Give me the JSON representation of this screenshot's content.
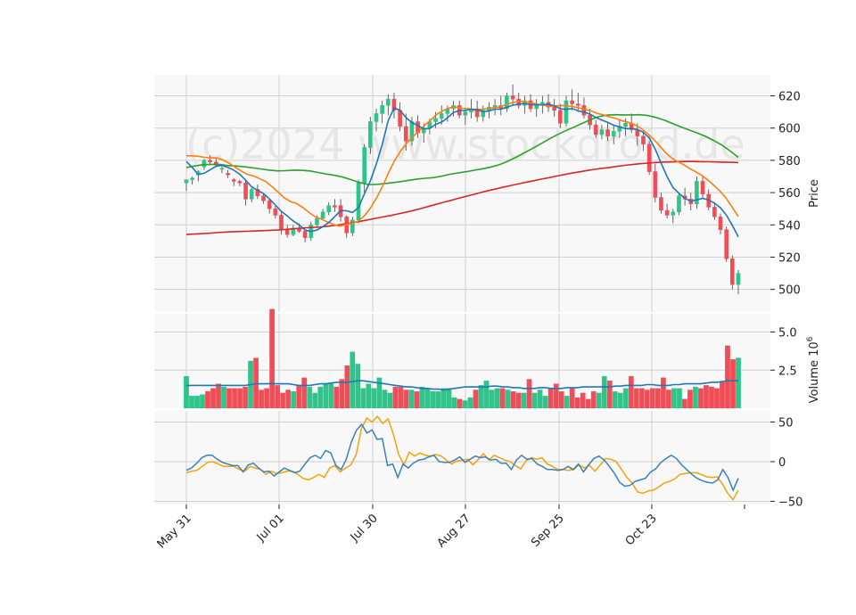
{
  "watermark": "(c)2024 www.stockdroid.de",
  "chart_data": {
    "type": "candlestick-with-volume-and-oscillator",
    "x_tick_labels": [
      "May 31",
      "Jul 01",
      "Jul 30",
      "Aug 27",
      "Sep 25",
      "Oct 23"
    ],
    "colors": {
      "up": "#2dc58a",
      "down": "#f14d57",
      "ma_blue": "#1f77b4",
      "ma_orange": "#ff7f0e",
      "ma_green": "#2ca02c",
      "ma_red": "#d62728",
      "osc_blue": "#3b82b8",
      "osc_orange": "#f5a20b",
      "panel_bg": "#f8f8f8",
      "grid": "#d0d0d0"
    },
    "price_panel": {
      "ylabel": "Price",
      "ylim": [
        486,
        633
      ],
      "yticks": [
        500,
        520,
        540,
        560,
        580,
        600,
        620
      ],
      "ohlc": [
        [
          566,
          568,
          561,
          568
        ],
        [
          568,
          570,
          565,
          569
        ],
        [
          571,
          574,
          567,
          573
        ],
        [
          576,
          581,
          574,
          580
        ],
        [
          580,
          583,
          577,
          579
        ],
        [
          579,
          581,
          576,
          577
        ],
        [
          575,
          577,
          572,
          575
        ],
        [
          572,
          574,
          569,
          571
        ],
        [
          568,
          569,
          564,
          567
        ],
        [
          567,
          568,
          564,
          566
        ],
        [
          566,
          568,
          552,
          556
        ],
        [
          556,
          563,
          554,
          562
        ],
        [
          562,
          565,
          556,
          558
        ],
        [
          558,
          559,
          553,
          555
        ],
        [
          555,
          556,
          547,
          550
        ],
        [
          550,
          552,
          544,
          546
        ],
        [
          546,
          548,
          534,
          537
        ],
        [
          537,
          540,
          532,
          534
        ],
        [
          534,
          540,
          533,
          538
        ],
        [
          538,
          541,
          535,
          536
        ],
        [
          536,
          537,
          529,
          532
        ],
        [
          532,
          542,
          530,
          540
        ],
        [
          540,
          546,
          538,
          544
        ],
        [
          544,
          550,
          543,
          548
        ],
        [
          548,
          554,
          546,
          552
        ],
        [
          552,
          556,
          548,
          551
        ],
        [
          552,
          556,
          542,
          545
        ],
        [
          545,
          546,
          532,
          535
        ],
        [
          535,
          545,
          533,
          543
        ],
        [
          543,
          568,
          541,
          566
        ],
        [
          566,
          590,
          560,
          588
        ],
        [
          588,
          607,
          584,
          604
        ],
        [
          604,
          612,
          598,
          609
        ],
        [
          609,
          617,
          603,
          614
        ],
        [
          614,
          621,
          608,
          618
        ],
        [
          618,
          622,
          606,
          611
        ],
        [
          611,
          616,
          598,
          601
        ],
        [
          601,
          609,
          586,
          592
        ],
        [
          592,
          607,
          589,
          604
        ],
        [
          604,
          608,
          594,
          597
        ],
        [
          597,
          603,
          591,
          600
        ],
        [
          600,
          606,
          596,
          604
        ],
        [
          604,
          610,
          600,
          606
        ],
        [
          606,
          614,
          602,
          609
        ],
        [
          609,
          614,
          604,
          612
        ],
        [
          612,
          617,
          607,
          614
        ],
        [
          614,
          617,
          606,
          608
        ],
        [
          608,
          612,
          602,
          610
        ],
        [
          610,
          618,
          606,
          612
        ],
        [
          612,
          617,
          604,
          607
        ],
        [
          607,
          614,
          604,
          611
        ],
        [
          611,
          616,
          606,
          613
        ],
        [
          613,
          618,
          608,
          614
        ],
        [
          614,
          620,
          608,
          612
        ],
        [
          612,
          622,
          610,
          620
        ],
        [
          620,
          627,
          614,
          618
        ],
        [
          618,
          622,
          612,
          614
        ],
        [
          614,
          620,
          609,
          617
        ],
        [
          617,
          621,
          610,
          612
        ],
        [
          612,
          618,
          607,
          615
        ],
        [
          615,
          620,
          609,
          616
        ],
        [
          616,
          621,
          610,
          613
        ],
        [
          613,
          618,
          607,
          611
        ],
        [
          611,
          615,
          600,
          603
        ],
        [
          603,
          620,
          601,
          617
        ],
        [
          617,
          624,
          611,
          615
        ],
        [
          615,
          622,
          610,
          614
        ],
        [
          614,
          619,
          606,
          608
        ],
        [
          608,
          612,
          599,
          602
        ],
        [
          602,
          605,
          594,
          596
        ],
        [
          596,
          602,
          593,
          599
        ],
        [
          599,
          603,
          592,
          595
        ],
        [
          595,
          602,
          590,
          598
        ],
        [
          598,
          605,
          594,
          601
        ],
        [
          601,
          606,
          595,
          603
        ],
        [
          603,
          609,
          597,
          599
        ],
        [
          599,
          603,
          589,
          595
        ],
        [
          595,
          598,
          586,
          590
        ],
        [
          590,
          592,
          571,
          573
        ],
        [
          573,
          578,
          554,
          557
        ],
        [
          557,
          560,
          547,
          549
        ],
        [
          549,
          553,
          544,
          546
        ],
        [
          546,
          550,
          541,
          548
        ],
        [
          548,
          560,
          546,
          558
        ],
        [
          558,
          563,
          552,
          556
        ],
        [
          556,
          560,
          549,
          553
        ],
        [
          553,
          570,
          550,
          567
        ],
        [
          567,
          570,
          556,
          559
        ],
        [
          559,
          562,
          549,
          551
        ],
        [
          551,
          554,
          543,
          545
        ],
        [
          545,
          547,
          534,
          537
        ],
        [
          537,
          539,
          517,
          519
        ],
        [
          519,
          521,
          500,
          503
        ],
        [
          503,
          512,
          497,
          510
        ]
      ],
      "ma_short": [
        579.3,
        575.6,
        571.2,
        572.0,
        574.1,
        576.3,
        576.9,
        575.6,
        573.9,
        571.4,
        567.6,
        563.6,
        561.5,
        559.4,
        556.1,
        552.3,
        548.4,
        545.6,
        542.5,
        540.0,
        536.8,
        535.9,
        536.8,
        538.9,
        541.5,
        545.1,
        548.9,
        548.7,
        547.7,
        550.7,
        559.3,
        567.2,
        577.6,
        589.6,
        604.5,
        612.5,
        611.1,
        606.5,
        603.5,
        601.6,
        599.5,
        599.8,
        602.3,
        603.7,
        606.4,
        609.7,
        610.9,
        610.9,
        611.7,
        611.4,
        610.2,
        610.6,
        611.7,
        611.8,
        612.9,
        614.2,
        614.9,
        615.2,
        614.6,
        614.4,
        614.5,
        614.7,
        613.8,
        612.0,
        611.6,
        612.1,
        610.7,
        609.9,
        608.7,
        606.6,
        605.0,
        603.6,
        601.8,
        600.8,
        599.7,
        599.7,
        599.1,
        597.4,
        593.9,
        587.0,
        578.2,
        569.9,
        563.1,
        559.6,
        556.4,
        554.7,
        555.6,
        556.4,
        555.5,
        553.4,
        550.6,
        546.0,
        539.7,
        532.6
      ],
      "ma_mid": [
        582.9,
        582.8,
        582.5,
        581.9,
        581.5,
        581.5,
        580.2,
        578.1,
        575.7,
        573.2,
        571.2,
        570.3,
        568.5,
        566.8,
        563.6,
        560.1,
        556.7,
        554.4,
        553.2,
        550.7,
        547.7,
        545.1,
        543.6,
        541.8,
        540.2,
        539.1,
        540.2,
        541.0,
        542.3,
        545.5,
        550.4,
        556.6,
        564.0,
        572.6,
        580.1,
        586.2,
        590.9,
        594.8,
        598.4,
        602.2,
        605.6,
        609.0,
        611.1,
        612.6,
        613.0,
        612.3,
        612.1,
        611.0,
        611.6,
        612.0,
        612.5,
        613.1,
        614.4,
        615.6,
        616.4,
        616.6,
        615.9,
        615.1,
        614.3,
        613.7,
        613.7,
        614.0,
        613.9,
        613.3,
        612.5,
        611.5,
        610.7,
        609.1,
        608.2,
        606.9,
        606.0,
        604.6,
        603.6,
        602.3,
        600.2,
        597.3,
        593.8,
        589.8,
        585.3,
        581.9,
        579.4,
        577.5,
        575.1,
        573.0,
        570.8,
        567.9,
        564.5,
        561.0,
        556.6,
        551.0,
        545.2
      ],
      "ma_long": [
        575.5,
        576.5,
        577.3,
        577.5,
        577.5,
        576.8,
        576.5,
        576.0,
        575.4,
        574.7,
        574.0,
        573.5,
        573.6,
        573.9,
        573.8,
        573.4,
        572.5,
        571.5,
        570.7,
        569.6,
        568.0,
        566.3,
        565.1,
        565.0,
        565.5,
        566.2,
        566.8,
        567.6,
        568.4,
        568.9,
        569.3,
        570.2,
        571.4,
        572.2,
        573.0,
        573.9,
        574.8,
        575.9,
        577.3,
        579.4,
        581.9,
        584.6,
        587.3,
        590.2,
        593.1,
        595.8,
        598.3,
        600.5,
        602.8,
        605.1,
        607.0,
        608.0,
        608.3,
        608.2,
        608.2,
        608.3,
        607.8,
        606.6,
        604.9,
        602.9,
        600.8,
        598.9,
        597.0,
        594.9,
        592.3,
        589.5,
        585.8,
        581.9
      ],
      "ma_long_start_index": 0,
      "ma_200": [
        534.0,
        534.3,
        534.5,
        534.8,
        535.2,
        535.5,
        535.7,
        535.9,
        536.0,
        536.2,
        536.4,
        536.6,
        536.8,
        537.1,
        537.5,
        537.9,
        538.2,
        538.5,
        538.8,
        539.3,
        539.9,
        540.6,
        541.4,
        542.2,
        543.1,
        544.0,
        544.9,
        545.8,
        546.8,
        547.8,
        548.9,
        550.1,
        551.4,
        552.7,
        554.0,
        555.2,
        556.5,
        557.7,
        558.9,
        560.1,
        561.3,
        562.4,
        563.5,
        564.5,
        565.5,
        566.5,
        567.4,
        568.4,
        569.3,
        570.3,
        571.2,
        572.1,
        572.9,
        573.7,
        574.4,
        575.1,
        575.6,
        576.3,
        576.9,
        577.4,
        577.9,
        578.3,
        578.7,
        578.9,
        579.0,
        579.2,
        579.3,
        579.3,
        579.2,
        579.1,
        579.0,
        578.9,
        578.8,
        578.6
      ],
      "ma_long_len": 68
    },
    "volume_panel": {
      "ylabel": "Volume  10^6",
      "ylim": [
        0,
        6.2
      ],
      "yticks": [
        "2.5",
        "5.0"
      ],
      "ytick_values": [
        2.5,
        5.0
      ],
      "values": [
        2.1,
        0.8,
        0.8,
        0.9,
        1.1,
        1.3,
        1.6,
        1.4,
        1.3,
        1.3,
        1.3,
        1.4,
        3.1,
        3.3,
        1.2,
        1.3,
        6.5,
        1.5,
        1.0,
        1.2,
        1.1,
        1.5,
        2.0,
        1.4,
        1.0,
        1.4,
        1.6,
        1.6,
        1.4,
        1.9,
        2.8,
        3.7,
        2.9,
        1.3,
        1.6,
        1.3,
        2.0,
        1.2,
        1.0,
        1.4,
        1.4,
        1.2,
        1.2,
        1.1,
        1.4,
        1.3,
        1.1,
        1.1,
        1.3,
        1.3,
        0.7,
        0.6,
        0.5,
        0.7,
        1.2,
        1.5,
        1.8,
        1.2,
        1.3,
        1.3,
        1.2,
        1.1,
        1.0,
        1.0,
        1.9,
        1.0,
        1.2,
        0.8,
        1.3,
        1.6,
        1.1,
        0.8,
        1.3,
        0.7,
        1.0,
        0.6,
        1.1,
        1.0,
        2.1,
        1.8,
        1.1,
        1.0,
        1.3,
        2.1,
        1.3,
        1.3,
        1.2,
        1.3,
        1.3,
        2.0,
        1.2,
        1.3,
        1.3,
        0.6,
        1.2,
        1.4,
        1.3,
        1.5,
        1.4,
        1.3,
        1.7,
        4.1,
        3.2,
        3.3
      ],
      "ma": [
        1.5,
        1.5,
        1.5,
        1.5,
        1.5,
        1.5,
        1.5,
        1.5,
        1.5,
        1.5,
        1.5,
        1.5,
        1.55,
        1.6,
        1.6,
        1.6,
        1.62,
        1.6,
        1.6,
        1.6,
        1.55,
        1.5,
        1.5,
        1.5,
        1.55,
        1.6,
        1.6,
        1.65,
        1.7,
        1.7,
        1.7,
        1.75,
        1.8,
        1.8,
        1.75,
        1.7,
        1.65,
        1.6,
        1.55,
        1.5,
        1.45,
        1.4,
        1.4,
        1.35,
        1.3,
        1.3,
        1.25,
        1.25,
        1.2,
        1.25,
        1.3,
        1.35,
        1.4,
        1.4,
        1.4,
        1.4,
        1.4,
        1.45,
        1.45,
        1.4,
        1.4,
        1.35,
        1.35,
        1.3,
        1.3,
        1.3,
        1.35,
        1.35,
        1.3,
        1.3,
        1.3,
        1.35,
        1.35,
        1.35,
        1.4,
        1.4,
        1.4,
        1.4,
        1.4,
        1.4,
        1.45,
        1.45,
        1.5,
        1.5,
        1.5,
        1.5,
        1.55,
        1.55,
        1.5,
        1.5,
        1.5,
        1.55,
        1.55,
        1.6,
        1.6,
        1.6,
        1.6,
        1.65,
        1.7,
        1.7,
        1.75,
        1.8,
        1.8,
        1.8
      ]
    },
    "oscillator_panel": {
      "ylim": [
        -54,
        64
      ],
      "yticks": [
        -50,
        0,
        50
      ],
      "series_blue": [
        -11,
        -8,
        -2,
        5,
        8,
        8,
        3,
        -1,
        -3,
        -5,
        -5,
        -13,
        -4,
        -2,
        -8,
        -13,
        -12,
        -18,
        -13,
        -8,
        -11,
        -14,
        -12,
        -3,
        5,
        8,
        4,
        14,
        11,
        -5,
        -10,
        3,
        25,
        40,
        47,
        36,
        40,
        28,
        29,
        -5,
        -3,
        -20,
        -3,
        -8,
        -2,
        2,
        3,
        6,
        8,
        0,
        -1,
        -1,
        2,
        6,
        -1,
        3,
        7,
        5,
        6,
        2,
        3,
        -2,
        -2,
        -10,
        2,
        8,
        3,
        4,
        -3,
        -6,
        -10,
        -10,
        -11,
        -10,
        -6,
        -10,
        -3,
        -13,
        -4,
        4,
        7,
        2,
        -6,
        -15,
        -26,
        -31,
        -30,
        -25,
        -23,
        -21,
        -13,
        -9,
        -1,
        4,
        8,
        4,
        -4,
        -10,
        -16,
        -21,
        -24,
        -26,
        -27,
        -23,
        -10,
        -20,
        -36,
        -21
      ],
      "series_orange": [
        -14,
        -12,
        -11,
        -6,
        -1,
        0,
        -3,
        -6,
        -6,
        -6,
        -10,
        -12,
        -6,
        -8,
        -10,
        -16,
        -12,
        -15,
        -14,
        -12,
        -12,
        -16,
        -21,
        -23,
        -20,
        -16,
        -20,
        -8,
        -5,
        -13,
        -8,
        -4,
        9,
        42,
        55,
        50,
        57,
        48,
        54,
        35,
        9,
        -4,
        12,
        7,
        11,
        8,
        7,
        9,
        7,
        2,
        -3,
        1,
        2,
        3,
        -4,
        3,
        10,
        2,
        8,
        5,
        2,
        0,
        -5,
        -9,
        1,
        5,
        3,
        5,
        -3,
        -6,
        -10,
        -10,
        -11,
        -10,
        -4,
        -8,
        -5,
        -12,
        -4,
        4,
        3,
        0,
        -10,
        -20,
        -27,
        -38,
        -40,
        -37,
        -36,
        -32,
        -27,
        -25,
        -22,
        -16,
        -15,
        -14,
        -14,
        -16,
        -19,
        -20,
        -19,
        -28,
        -40,
        -48,
        -36
      ]
    }
  }
}
